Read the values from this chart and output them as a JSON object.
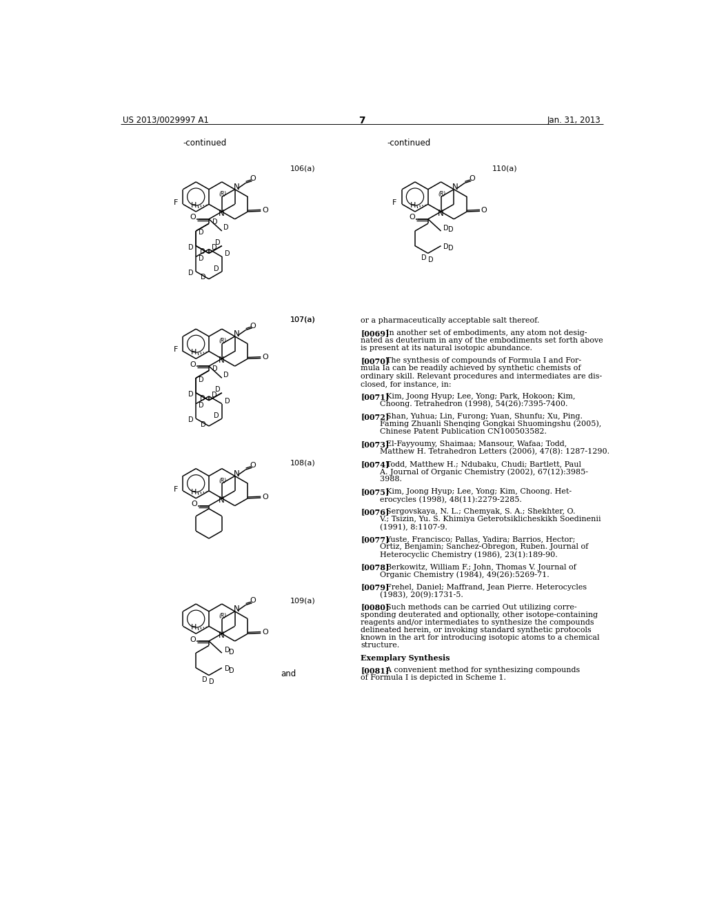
{
  "bg": "#ffffff",
  "header_left": "US 2013/0029997 A1",
  "header_center": "7",
  "header_right": "Jan. 31, 2013",
  "continued_left": "-continued",
  "continued_right": "-continued",
  "label_106a": "106(a)",
  "label_107a": "107(a)",
  "label_108a": "108(a)",
  "label_109a": "109(a)",
  "label_110a": "110(a)",
  "text_lines": [
    "or a pharmaceutically acceptable salt thereof.",
    "",
    "[0069] In another set of embodiments, any atom not desig-",
    "nated as deuterium in any of the embodiments set forth above",
    "is present at its natural isotopic abundance.",
    "",
    "[0070] The synthesis of compounds of Formula I and For-",
    "mula Ia can be readily achieved by synthetic chemists of",
    "ordinary skill. Relevant procedures and intermediates are dis-",
    "closed, for instance, in:",
    "",
    "[0071] Kim, Joong Hyup; Lee, Yong; Park, Hokoon; Kim,",
    "  Choong. Tetrahedron (1998), 54(26):7395-7400.",
    "",
    "[0072] Shan, Yuhua; Lin, Furong; Yuan, Shunfu; Xu, Ping.",
    "  Faming Zhuanli Shenqing Gongkai Shuomingshu (2005),",
    "  Chinese Patent Publication CN100503582.",
    "",
    "[0073] El-Fayyoumy, Shaimaa; Mansour, Wafaa; Todd,",
    "  Matthew H. Tetrahedron Letters (2006), 47(8): 1287-1290.",
    "",
    "[0074] Todd, Matthew H.; Ndubaku, Chudi; Bartlett, Paul",
    "  A. Journal of Organic Chemistry (2002), 67(12):3985-",
    "  3988.",
    "",
    "[0075] Kim, Joong Hyup; Lee, Yong; Kim, Choong. Het-",
    "  erocycles (1998), 48(11):2279-2285.",
    "",
    "[0076] Sergovskaya, N. L.; Chemyak, S. A.; Shekhter, O.",
    "  V.; Tsizin, Yu. S. Khimiya Geterotsiklicheskikh Soedinenii",
    "  (1991), 8:1107-9.",
    "",
    "[0077] Yuste, Francisco; Pallas, Yadira; Barrios, Hector;",
    "  Ortiz, Benjamin; Sanchez-Obregon, Ruben. Journal of",
    "  Heterocyclic Chemistry (1986), 23(1):189-90.",
    "",
    "[0078] Berkowitz, William F.; John, Thomas V. Journal of",
    "  Organic Chemistry (1984), 49(26):5269-71.",
    "",
    "[0079] Frehel, Daniel; Maffrand, Jean Pierre. Heterocycles",
    "  (1983), 20(9):1731-5.",
    "",
    "[0080] Such methods can be carried Out utilizing corre-",
    "sponding deuterated and optionally, other isotope-containing",
    "reagents and/or intermediates to synthesize the compounds",
    "delineated herein, or invoking standard synthetic protocols",
    "known in the art for introducing isotopic atoms to a chemical",
    "structure.",
    "",
    "Exemplary Synthesis",
    "",
    "[0081] A convenient method for synthesizing compounds",
    "of Formula I is depicted in Scheme 1."
  ]
}
